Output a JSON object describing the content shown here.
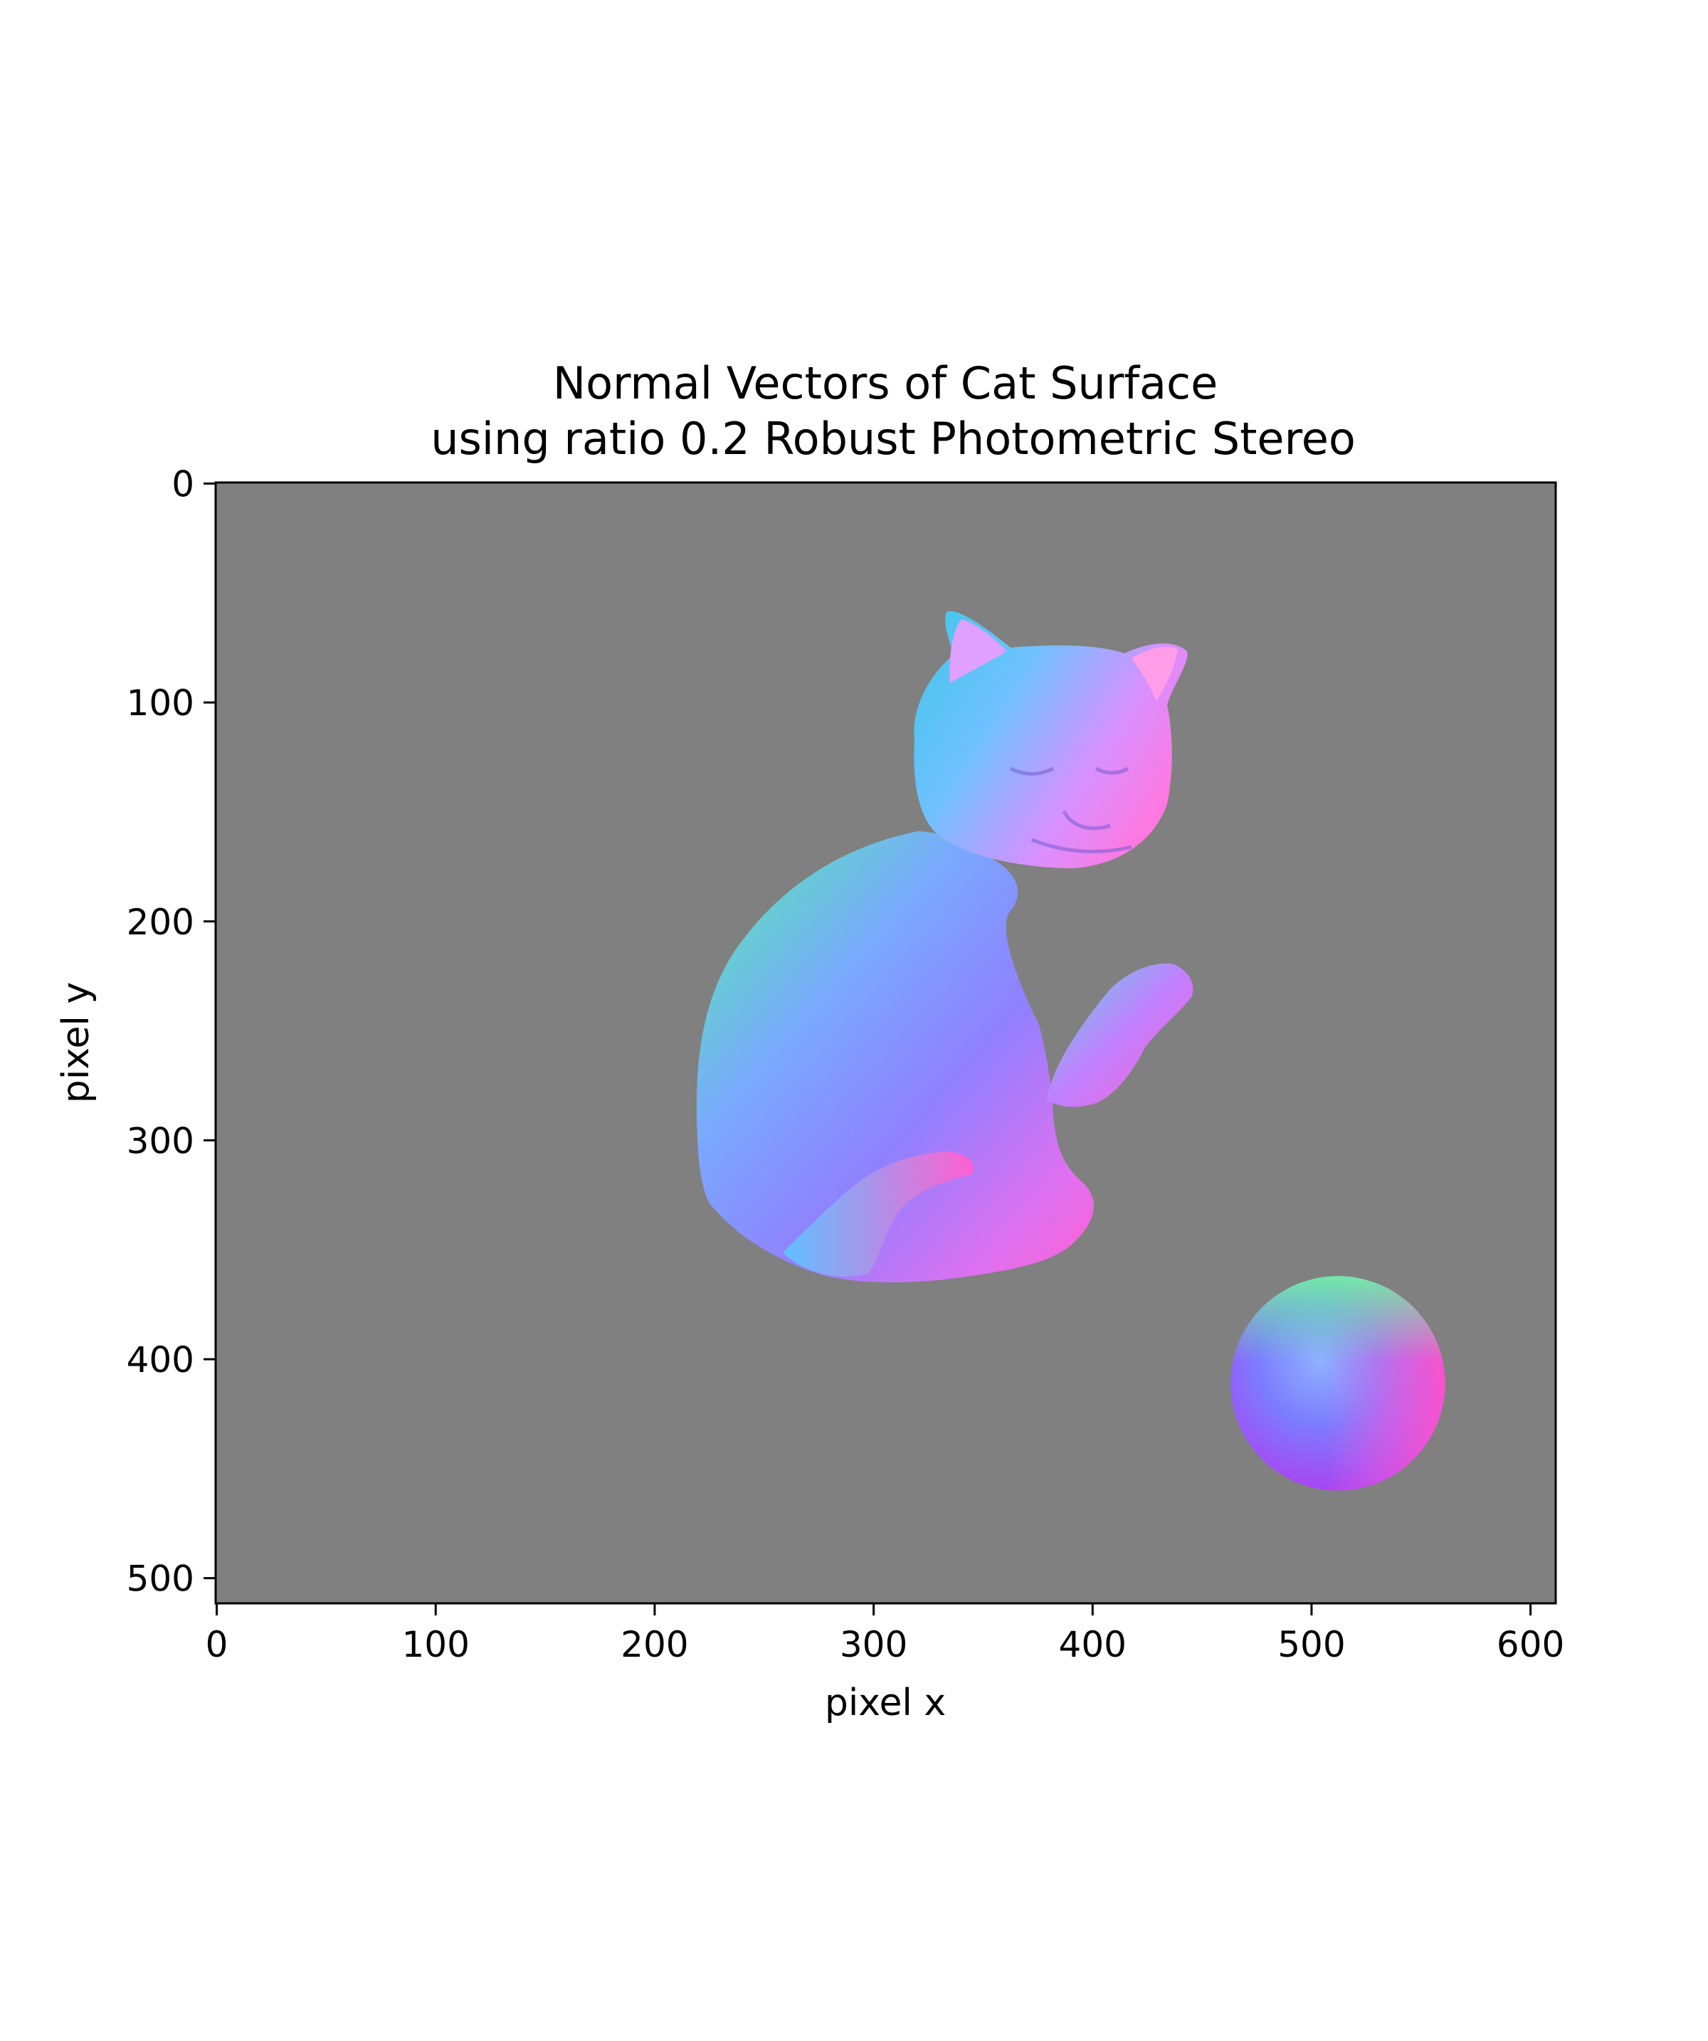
{
  "chart_data": {
    "type": "heatmap",
    "title": "Normal Vectors of Cat Surface",
    "subtitle": "using ratio 0.2 Robust Photometric Stereo",
    "xlabel": "pixel x",
    "ylabel": "pixel y",
    "xlim": [
      -0.5,
      611.5
    ],
    "ylim": [
      511.5,
      -0.5
    ],
    "x_ticks": [
      0,
      100,
      200,
      300,
      400,
      500,
      600
    ],
    "y_ticks": [
      0,
      100,
      200,
      300,
      400,
      500
    ],
    "y_inverted": true,
    "grid": false,
    "background_color": "#808080",
    "image_content": "surface normal map rendered as RGB (cat figurine and sphere)",
    "objects": [
      {
        "name": "cat",
        "bbox_data": {
          "x_min": 220,
          "x_max": 448,
          "y_min": 60,
          "y_max": 366
        }
      },
      {
        "name": "sphere",
        "center": [
          512,
          411
        ],
        "radius": 49
      }
    ]
  }
}
